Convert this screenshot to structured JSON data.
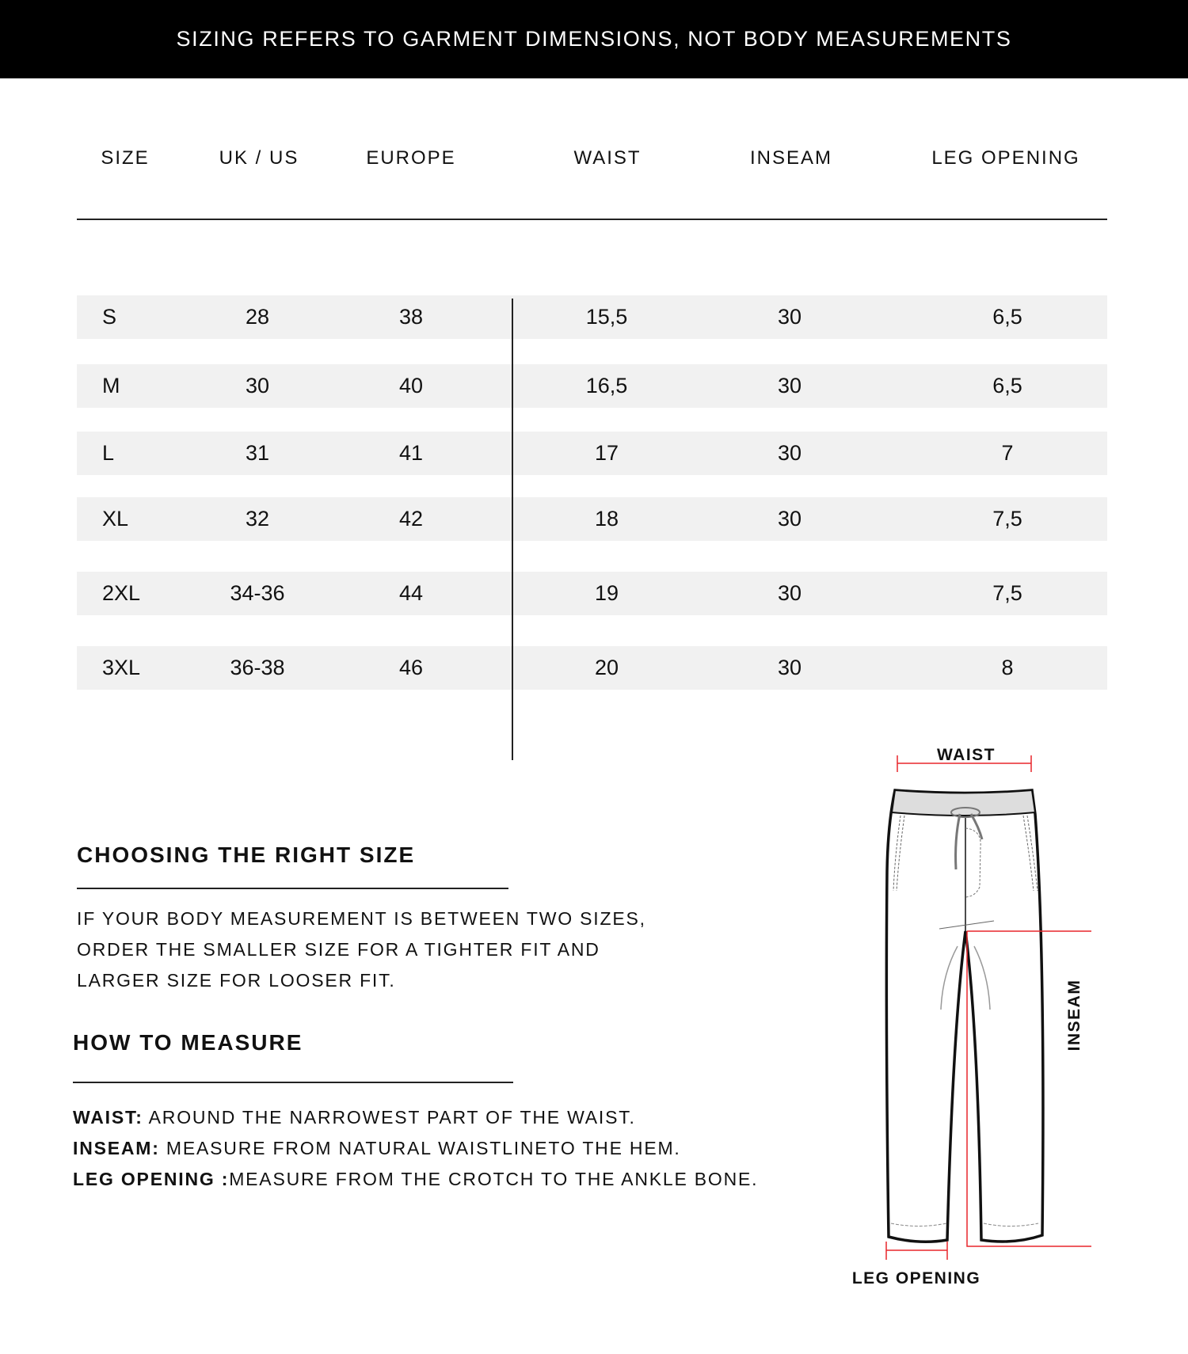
{
  "banner": "SIZING REFERS TO GARMENT DIMENSIONS, NOT BODY MEASUREMENTS",
  "table": {
    "headers": [
      "SIZE",
      "UK / US",
      "EUROPE",
      "WAIST",
      "INSEAM",
      "LEG OPENING"
    ],
    "rows": [
      [
        "S",
        "28",
        "38",
        "15,5",
        "30",
        "6,5"
      ],
      [
        "M",
        "30",
        "40",
        "16,5",
        "30",
        "6,5"
      ],
      [
        "L",
        "31",
        "41",
        "17",
        "30",
        "7"
      ],
      [
        "XL",
        "32",
        "42",
        "18",
        "30",
        "7,5"
      ],
      [
        "2XL",
        "34-36",
        "44",
        "19",
        "30",
        "7,5"
      ],
      [
        "3XL",
        "36-38",
        "46",
        "20",
        "30",
        "8"
      ]
    ]
  },
  "choosing": {
    "title": "CHOOSING THE RIGHT SIZE",
    "lines": [
      "IF YOUR BODY MEASUREMENT IS BETWEEN TWO SIZES,",
      "ORDER THE SMALLER SIZE FOR A TIGHTER FIT AND",
      "LARGER SIZE FOR LOOSER FIT."
    ]
  },
  "measure": {
    "title": "HOW TO MEASURE",
    "items": [
      {
        "term": "WAIST:",
        "text": " AROUND THE NARROWEST PART OF THE WAIST."
      },
      {
        "term": "INSEAM:",
        "text": " MEASURE FROM NATURAL WAISTLINETO THE HEM."
      },
      {
        "term": "LEG OPENING :",
        "text": "MEASURE FROM THE CROTCH TO THE ANKLE BONE."
      }
    ]
  },
  "diagram": {
    "waist_label": "WAIST",
    "inseam_label": "INSEAM",
    "leg_opening_label": "LEG OPENING",
    "measure_color": "#e8262b"
  }
}
